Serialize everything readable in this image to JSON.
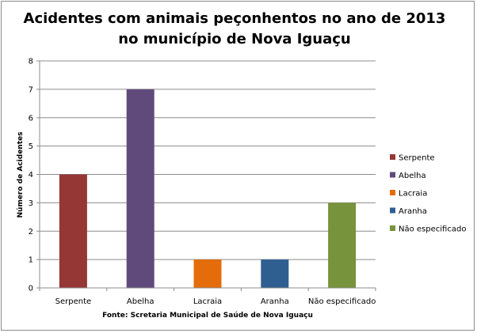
{
  "chart_data": {
    "type": "bar",
    "title_lines": [
      "Acidentes com animais peçonhentos no ano de 2013",
      "no município de Nova Iguaçu"
    ],
    "xlabel": "Fonte: Scretaria Municipal  de Saúde de Nova Iguaçu",
    "ylabel": "Número de Acidentes",
    "categories": [
      "Serpente",
      "Abelha",
      "Lacraia",
      "Aranha",
      "Não especificado"
    ],
    "values": [
      4,
      7,
      1,
      1,
      3
    ],
    "colors": [
      "#953735",
      "#604a7b",
      "#e46c0a",
      "#2f5e91",
      "#77933c"
    ],
    "ylim": [
      0,
      8
    ],
    "yticks": [
      0,
      1,
      2,
      3,
      4,
      5,
      6,
      7,
      8
    ],
    "grid": true,
    "legend": {
      "position": "right",
      "entries": [
        "Serpente",
        "Abelha",
        "Lacraia",
        "Aranha",
        "Não especificado"
      ]
    }
  }
}
